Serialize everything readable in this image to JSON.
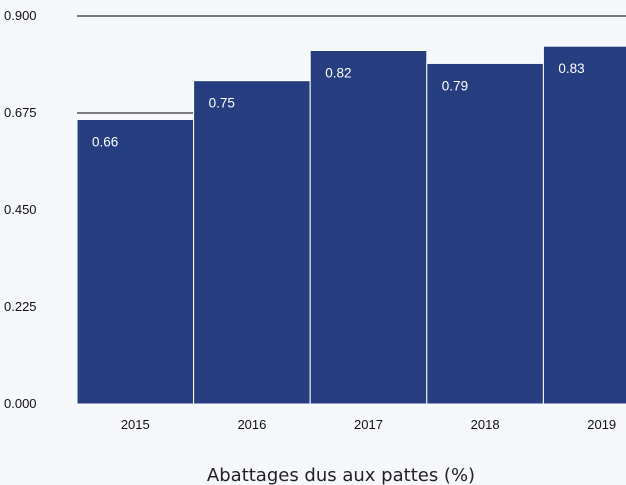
{
  "chart_data": {
    "type": "bar",
    "title": "",
    "xlabel": "Abattages dus aux pattes (%)",
    "ylabel": "",
    "categories": [
      "2015",
      "2016",
      "2017",
      "2018",
      "2019"
    ],
    "values": [
      0.66,
      0.75,
      0.82,
      0.79,
      0.83
    ],
    "data_labels": [
      "0.66",
      "0.75",
      "0.82",
      "0.79",
      "0.83"
    ],
    "ylim": [
      0,
      0.9
    ],
    "y_ticks": [
      "0.000",
      "0.225",
      "0.450",
      "0.675",
      "0.900"
    ],
    "grid": "horizontal",
    "legend": "none",
    "bar_color": "#263e80",
    "bar_edge_color": "#ffffff",
    "background_color": "#f5f7fa"
  }
}
